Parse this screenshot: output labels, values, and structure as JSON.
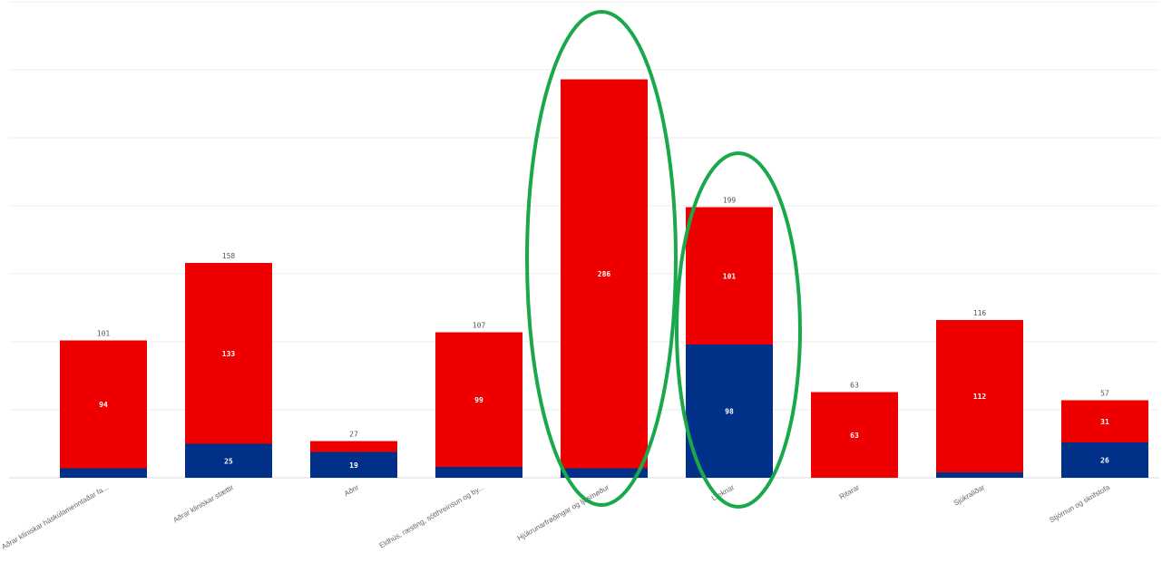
{
  "chart_data": {
    "type": "bar",
    "stacked": true,
    "categories": [
      "Aðrar kliniskar háskúlamenntaðar fa...",
      "Aðrar kliniskar stættir",
      "Aðrir",
      "Eldhús, ræsting, sótthreinsun og by...",
      "Hjúkrunarfrøðingar og ljósmøður",
      "Læknar",
      "Ritarar",
      "Sjúkraliðar",
      "Stjórnun og skrifstofa"
    ],
    "series": [
      {
        "color": "#003087",
        "values": [
          7,
          25,
          19,
          8,
          7,
          98,
          0,
          4,
          26
        ],
        "labels": [
          "",
          "25",
          "19",
          "",
          "",
          "98",
          "",
          "",
          "26"
        ]
      },
      {
        "color": "#ee0000",
        "values": [
          94,
          133,
          8,
          99,
          286,
          101,
          63,
          112,
          31
        ],
        "labels": [
          "94",
          "133",
          "",
          "99",
          "286",
          "101",
          "63",
          "112",
          "31"
        ]
      }
    ],
    "totals": [
      "101",
      "158",
      "27",
      "107",
      "",
      "199",
      "63",
      "116",
      "57"
    ],
    "ylim": [
      0,
      350
    ],
    "grid": true,
    "legend": "none",
    "annotations": {
      "type": "ellipse-highlight",
      "color": "#1aa84a",
      "categories": [
        "Hjúkrunarfrøðingar og ljósmøður",
        "Læknar"
      ]
    }
  }
}
